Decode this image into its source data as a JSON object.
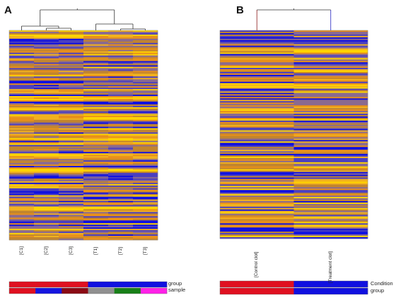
{
  "chart_data": [
    {
      "type": "heatmap",
      "panel_label": "A",
      "columns": [
        "[C1]",
        "[C2]",
        "[C3]",
        "[T1]",
        "[T2]",
        "[T3]"
      ],
      "color_scale": [
        "#1010e0",
        "#f0a020",
        "#ffd800"
      ],
      "dendrogram": "top",
      "annotation_bars": [
        {
          "name": "group",
          "colors": [
            "#e01020",
            "#e01020",
            "#e01020",
            "#1010e0",
            "#1010e0",
            "#1010e0"
          ]
        },
        {
          "name": "sample",
          "colors": [
            "#e01020",
            "#1515e0",
            "#8b0a14",
            "#909090",
            "#188018",
            "#ff20e8"
          ]
        }
      ]
    },
    {
      "type": "heatmap",
      "panel_label": "B",
      "columns": [
        "[Control clot]",
        "[Treatment clot]"
      ],
      "color_scale": [
        "#1010e0",
        "#f0a020",
        "#ffd800"
      ],
      "dendrogram": "top",
      "annotation_bars": [
        {
          "name": "Condition",
          "colors": [
            "#e01020",
            "#1010e0"
          ]
        },
        {
          "name": "group",
          "colors": [
            "#e01020",
            "#1010e0"
          ]
        }
      ]
    }
  ]
}
